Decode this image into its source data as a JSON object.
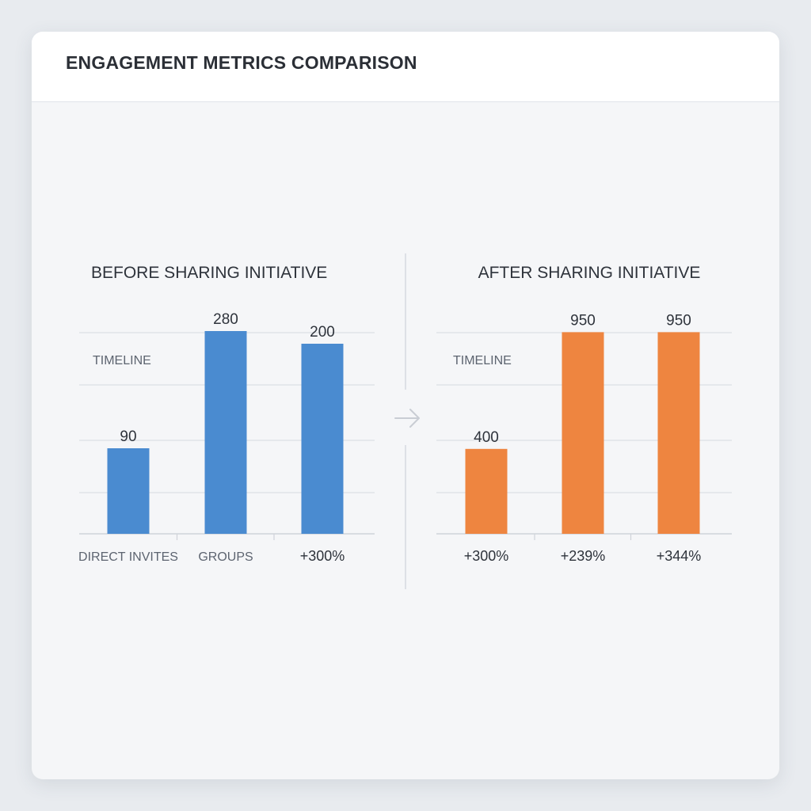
{
  "header": {
    "title": "ENGAGEMENT METRICS COMPARISON"
  },
  "colors": {
    "before": "#4a8bd0",
    "after": "#ee8540",
    "grid": "#dcdfe4",
    "text": "#2e333b",
    "muted": "#5d6470"
  },
  "icons": {
    "separator": "arrow-right-icon"
  },
  "chart_data": [
    {
      "type": "bar",
      "title": "BEFORE SHARING INITIATIVE",
      "annotation": "TIMELINE",
      "categories": [
        "DIRECT INVITES",
        "GROUPS",
        "+300%"
      ],
      "values": [
        90,
        280,
        200
      ],
      "data_labels": [
        "90",
        "280",
        "200"
      ],
      "color": "#4a8bd0",
      "grid": true
    },
    {
      "type": "bar",
      "title": "AFTER SHARING INITIATIVE",
      "annotation": "TIMELINE",
      "categories": [
        "+300%",
        "+239%",
        "+344%"
      ],
      "values": [
        400,
        950,
        950
      ],
      "data_labels": [
        "400",
        "950",
        "950"
      ],
      "color": "#ee8540",
      "grid": true
    }
  ]
}
